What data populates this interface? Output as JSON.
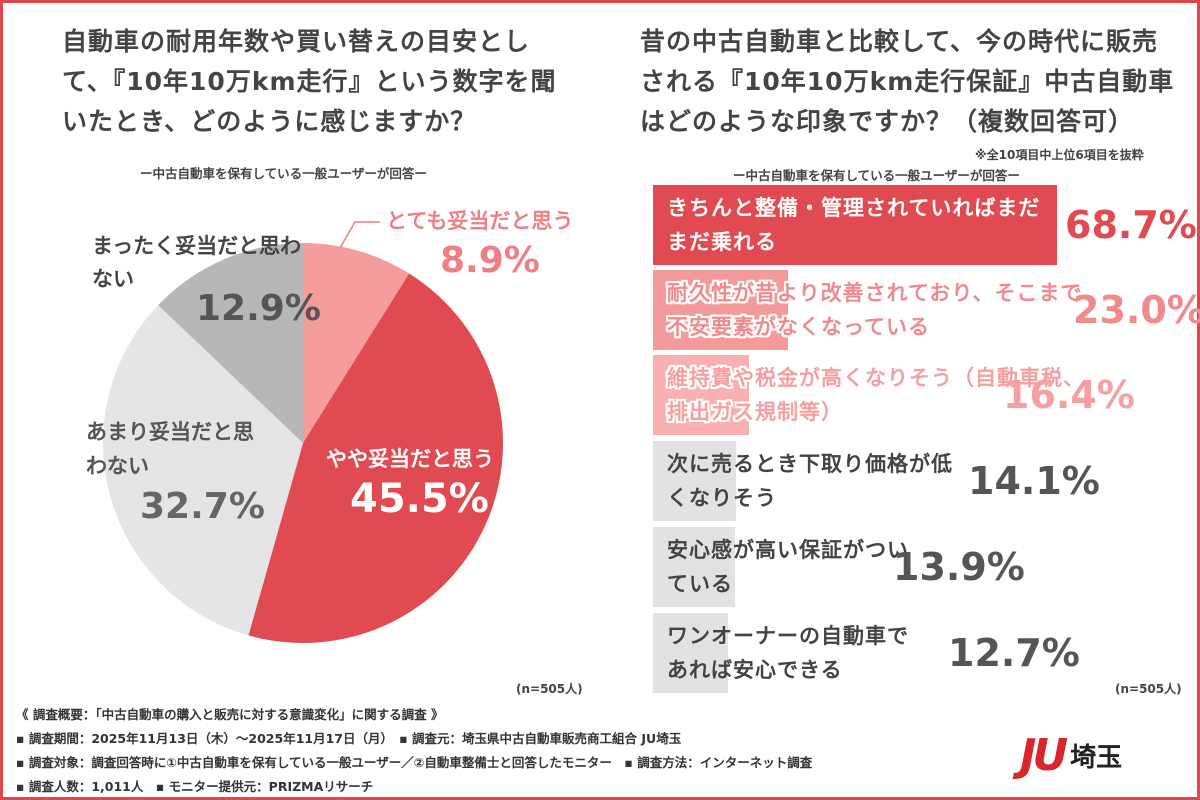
{
  "chart_data": [
    {
      "type": "pie",
      "title": "自動車の耐用年数や買い替えの目安として、『10年10万km走行』という数字を聞いたとき、どのように感じますか？",
      "subtitle": "ー中古自動車を保有している一般ユーザーが回答ー",
      "n_label": "(n=505人)",
      "slices": [
        {
          "label": "とても妥当だと思う",
          "value": 8.9,
          "value_label": "8.9%",
          "color": "#f59c9c"
        },
        {
          "label": "やや妥当だと思う",
          "value": 45.5,
          "value_label": "45.5%",
          "color": "#e04a50"
        },
        {
          "label": "あまり妥当だと思わない",
          "value": 32.7,
          "value_label": "32.7%",
          "color": "#e7e4e7"
        },
        {
          "label": "まったく妥当だと思わない",
          "value": 12.9,
          "value_label": "12.9%",
          "color": "#b8b6b9"
        }
      ]
    },
    {
      "type": "bar",
      "orientation": "horizontal",
      "title": "昔の中古自動車と比較して、今の時代に販売される『10年10万km走行保証』中古自動車はどのような印象ですか？（複数回答可）",
      "note": "※全10項目中上位6項目を抜粋",
      "subtitle": "ー中古自動車を保有している一般ユーザーが回答ー",
      "n_label": "(n=505人)",
      "xlim": [
        0,
        100
      ],
      "bars": [
        {
          "label": "きちんと整備・管理されていればまだまだ乗れる",
          "value": 68.7,
          "value_label": "68.7%",
          "color": "#e04a50",
          "text_color": "#e04a50"
        },
        {
          "label": "耐久性が昔より改善されており、そこまで不安要素がなくなっている",
          "value": 23.0,
          "value_label": "23.0%",
          "color": "#f59a9a",
          "text_color": "#f08a8d"
        },
        {
          "label": "維持費や税金が高くなりそう（自動車税、排出ガス規制等）",
          "value": 16.4,
          "value_label": "16.4%",
          "color": "#f8b0b0",
          "text_color": "#f5a0a2"
        },
        {
          "label": "次に売るとき下取り価格が低くなりそう",
          "value": 14.1,
          "value_label": "14.1%",
          "color": "#e3e1e3",
          "text_color": "#555"
        },
        {
          "label": "安心感が高い保証がついている",
          "value": 13.9,
          "value_label": "13.9%",
          "color": "#e3e1e3",
          "text_color": "#555"
        },
        {
          "label": "ワンオーナーの自動車であれば安心できる",
          "value": 12.7,
          "value_label": "12.7%",
          "color": "#e3e1e3",
          "text_color": "#555"
        }
      ]
    }
  ],
  "footer": {
    "overview": "《 調査概要：「中古自動車の購入と販売に対する意識変化」に関する調査 》",
    "line1": "▪ 調査期間：2025年11月13日（木）～2025年11月17日（月）　▪ 調査元：埼玉県中古自動車販売商工組合 JU埼玉",
    "line2": "▪ 調査対象：調査回答時に①中古自動車を保有している一般ユーザー／②自動車整備士と回答したモニター　▪ 調査方法：インターネット調査",
    "line3": "▪ 調査人数：1,011人　▪ モニター提供元：PRIZMAリサーチ"
  },
  "logo": {
    "mark": "JU",
    "text": "埼玉",
    "color": "#d8262c"
  }
}
